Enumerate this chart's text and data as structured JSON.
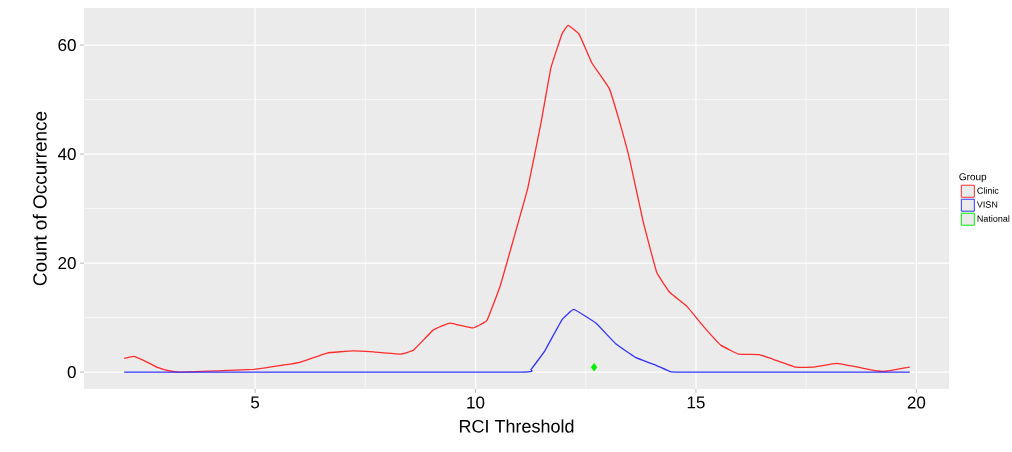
{
  "chart_data": {
    "type": "line",
    "xlabel": "RCI Threshold",
    "ylabel": "Count of Occurrence",
    "legend_title": "Group",
    "legend": "right",
    "grid": true,
    "xlim": [
      1.12,
      20.74
    ],
    "ylim": [
      -3.1,
      66.8
    ],
    "xticks": [
      5,
      10,
      15,
      20
    ],
    "yticks": [
      0,
      20,
      40,
      60
    ],
    "series": [
      {
        "name": "Clinic",
        "color": "#ff2a2a",
        "x": [
          2.03,
          2.24,
          2.46,
          2.77,
          3.07,
          3.3,
          4.96,
          5.64,
          6.02,
          6.63,
          7.23,
          7.68,
          8.29,
          8.59,
          9.04,
          9.42,
          9.94,
          10.26,
          10.56,
          10.87,
          11.19,
          11.49,
          11.71,
          11.96,
          12.1,
          12.35,
          12.64,
          13.03,
          13.25,
          13.5,
          13.8,
          14.11,
          14.41,
          14.79,
          15.18,
          15.57,
          15.97,
          16.43,
          16.74,
          17.27,
          17.65,
          18.19,
          18.67,
          19.13,
          19.35,
          19.85
        ],
        "values": [
          2.5,
          2.9,
          2.2,
          0.9,
          0.2,
          0,
          0.5,
          1.3,
          1.8,
          3.5,
          3.9,
          3.7,
          3.3,
          4.0,
          7.7,
          9.0,
          8.1,
          9.5,
          15.8,
          24.6,
          33.9,
          45.9,
          55.8,
          62.0,
          63.6,
          62.0,
          56.7,
          52.1,
          46.4,
          38.9,
          27.7,
          18.3,
          14.6,
          12.1,
          8.3,
          4.9,
          3.3,
          3.2,
          2.4,
          0.9,
          0.9,
          1.6,
          0.9,
          0.2,
          0.2,
          0.9
        ]
      },
      {
        "name": "VISN",
        "color": "#3333ff",
        "x": [
          2.03,
          11.03,
          11.26,
          11.58,
          11.96,
          12.23,
          12.73,
          13.18,
          13.63,
          14.11,
          14.41,
          14.66,
          19.85
        ],
        "values": [
          0,
          0,
          0.5,
          4.0,
          9.6,
          11.5,
          9.0,
          5.2,
          2.7,
          1.2,
          0.1,
          0,
          0
        ]
      },
      {
        "name": "National",
        "color": "#00ee00",
        "type": "scatter",
        "marker": "diamond",
        "x": [
          12.69
        ],
        "values": [
          0.9
        ]
      }
    ]
  }
}
